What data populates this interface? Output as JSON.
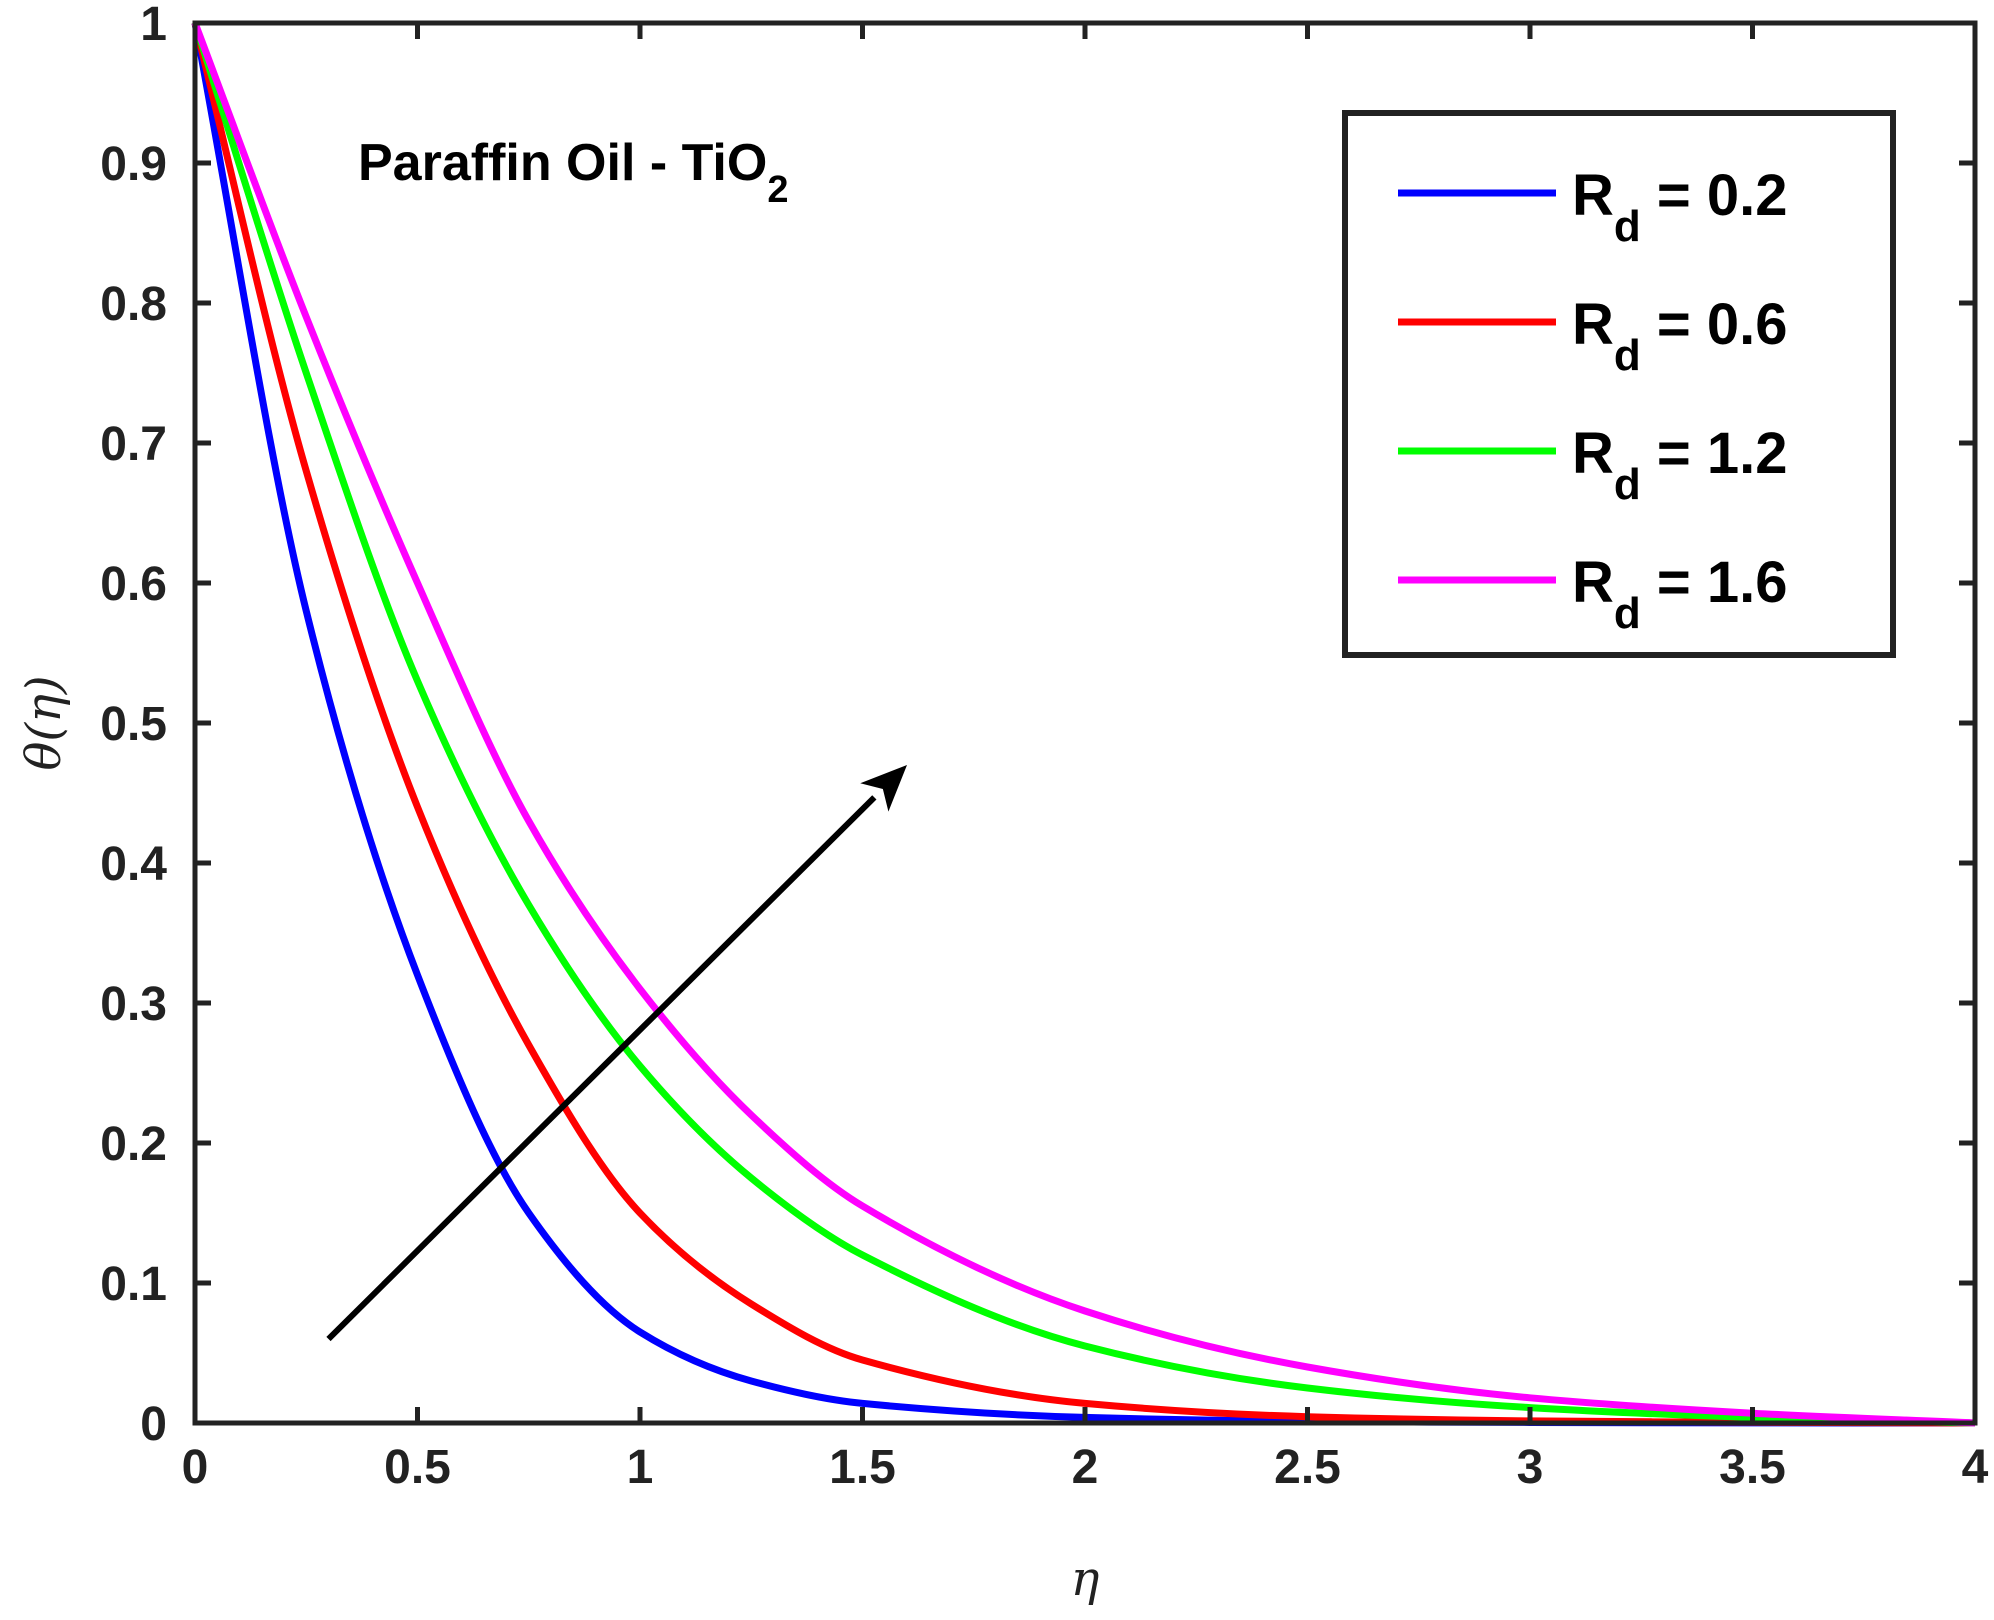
{
  "chart_data": {
    "type": "line",
    "xlabel": "η",
    "ylabel": "θ(η)",
    "xlim": [
      0,
      4
    ],
    "ylim": [
      0,
      1
    ],
    "xticks": [
      "0",
      "0.5",
      "1",
      "1.5",
      "2",
      "2.5",
      "3",
      "3.5",
      "4"
    ],
    "yticks": [
      "0",
      "0.1",
      "0.2",
      "0.3",
      "0.4",
      "0.5",
      "0.6",
      "0.7",
      "0.8",
      "0.9",
      "1"
    ],
    "grid": false,
    "legend_position": "top-right",
    "annotation": {
      "text": "Paraffin Oil - TiO",
      "subscript": "2"
    },
    "arrow": {
      "from": [
        0.3,
        0.06
      ],
      "to": [
        1.6,
        0.47
      ]
    },
    "x": [
      0,
      0.25,
      0.5,
      0.75,
      1,
      1.25,
      1.5,
      2,
      2.5,
      3,
      3.5,
      4
    ],
    "series": [
      {
        "name_main": "R",
        "name_sub": "d",
        "name_value": " = 0.2",
        "color": "#0000ff",
        "values": [
          1.0,
          0.58,
          0.32,
          0.15,
          0.065,
          0.03,
          0.014,
          0.004,
          0.0012,
          0.0004,
          0.0001,
          0.0
        ]
      },
      {
        "name_main": "R",
        "name_sub": "d",
        "name_value": " = 0.6",
        "color": "#ff0000",
        "values": [
          1.0,
          0.68,
          0.44,
          0.27,
          0.15,
          0.085,
          0.045,
          0.014,
          0.0045,
          0.0015,
          0.0005,
          0.0
        ]
      },
      {
        "name_main": "R",
        "name_sub": "d",
        "name_value": " = 1.2",
        "color": "#00ff00",
        "values": [
          1.0,
          0.75,
          0.53,
          0.37,
          0.255,
          0.175,
          0.12,
          0.055,
          0.025,
          0.011,
          0.004,
          0.0
        ]
      },
      {
        "name_main": "R",
        "name_sub": "d",
        "name_value": " = 1.6",
        "color": "#ff00ff",
        "values": [
          1.0,
          0.79,
          0.6,
          0.43,
          0.31,
          0.22,
          0.155,
          0.08,
          0.04,
          0.018,
          0.007,
          0.0
        ]
      }
    ]
  }
}
